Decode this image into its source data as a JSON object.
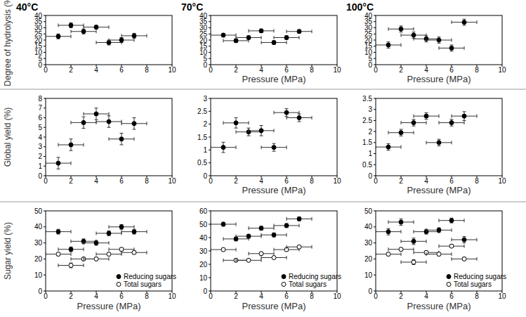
{
  "chart_data": [
    {
      "type": "scatter",
      "title": "40°C",
      "y_label": "Degree of hydrolysis (%)",
      "xlim": [
        0,
        10
      ],
      "xticks": [
        0,
        2,
        4,
        6,
        8,
        10
      ],
      "ylim": [
        0,
        40
      ],
      "yticks": [
        0,
        5,
        10,
        15,
        20,
        25,
        30,
        35,
        40
      ],
      "grid": false,
      "series": [
        {
          "color": "#000000",
          "marker": "circle",
          "x": [
            1,
            2,
            3,
            4,
            5,
            6,
            7
          ],
          "x_errors": [
            1,
            1,
            1,
            1,
            1,
            1,
            1
          ],
          "values": [
            23,
            32,
            27,
            30.5,
            18,
            20,
            23.5
          ],
          "errors": [
            2,
            2,
            2,
            1.5,
            2,
            2,
            2
          ]
        }
      ]
    },
    {
      "type": "scatter",
      "title": "70°C",
      "x_label": "Pressure (MPa)",
      "xlim": [
        0,
        10
      ],
      "xticks": [
        0,
        2,
        4,
        6,
        8,
        10
      ],
      "ylim": [
        0,
        40
      ],
      "yticks": [
        0,
        5,
        10,
        15,
        20,
        25,
        30,
        35,
        40
      ],
      "grid": false,
      "series": [
        {
          "color": "#000000",
          "marker": "circle",
          "x": [
            1,
            2,
            3,
            4,
            5,
            6,
            7
          ],
          "x_errors": [
            1,
            1,
            1,
            1,
            1,
            1,
            1
          ],
          "values": [
            24,
            19.5,
            22,
            27.5,
            18,
            22,
            27
          ],
          "errors": [
            1.5,
            1.5,
            1.5,
            1.5,
            1.5,
            1.5,
            1.5
          ]
        }
      ]
    },
    {
      "type": "scatter",
      "title": "100°C",
      "x_label": "Pressure (MPa)",
      "xlim": [
        0,
        10
      ],
      "xticks": [
        0,
        2,
        4,
        6,
        8,
        10
      ],
      "ylim": [
        0,
        40
      ],
      "yticks": [
        0,
        5,
        10,
        15,
        20,
        25,
        30,
        35,
        40
      ],
      "grid": false,
      "series": [
        {
          "color": "#000000",
          "marker": "circle",
          "x": [
            1,
            2,
            3,
            4,
            5,
            6,
            7
          ],
          "x_errors": [
            1,
            1,
            1,
            1,
            1,
            1,
            1
          ],
          "values": [
            16,
            29,
            24,
            21,
            20,
            13.5,
            34.5
          ],
          "errors": [
            2.5,
            2.5,
            2.5,
            2.5,
            2.5,
            2.5,
            2.5
          ]
        }
      ]
    },
    {
      "type": "scatter",
      "y_label": "Global yield (%)",
      "xlim": [
        0,
        10
      ],
      "xticks": [
        0,
        2,
        4,
        6,
        8,
        10
      ],
      "ylim": [
        0,
        8
      ],
      "yticks": [
        0,
        1,
        2,
        3,
        4,
        5,
        6,
        7,
        8
      ],
      "grid": false,
      "series": [
        {
          "color": "#000000",
          "marker": "circle",
          "x": [
            1,
            2,
            3,
            4,
            5,
            6,
            7
          ],
          "x_errors": [
            1,
            1,
            1,
            1,
            1,
            1,
            1
          ],
          "values": [
            1.3,
            3.2,
            5.5,
            6.4,
            5.6,
            3.8,
            5.4
          ],
          "errors": [
            0.6,
            0.6,
            0.6,
            0.6,
            0.6,
            0.6,
            0.6
          ]
        }
      ]
    },
    {
      "type": "scatter",
      "x_label": "Pressure (MPa)",
      "xlim": [
        0,
        10
      ],
      "xticks": [
        0,
        2,
        4,
        6,
        8,
        10
      ],
      "ylim": [
        0,
        3
      ],
      "yticks": [
        0,
        0.5,
        1,
        1.5,
        2,
        2.5,
        3
      ],
      "grid": false,
      "series": [
        {
          "color": "#000000",
          "marker": "circle",
          "x": [
            1,
            2,
            3,
            4,
            5,
            6,
            7
          ],
          "x_errors": [
            1,
            1,
            1,
            1,
            1,
            1,
            1
          ],
          "values": [
            1.1,
            2.05,
            1.7,
            1.75,
            1.1,
            2.45,
            2.25
          ],
          "errors": [
            0.2,
            0.2,
            0.15,
            0.2,
            0.15,
            0.15,
            0.15
          ]
        }
      ]
    },
    {
      "type": "scatter",
      "x_label": "Pressure (MPa)",
      "xlim": [
        0,
        10
      ],
      "xticks": [
        0,
        2,
        4,
        6,
        8,
        10
      ],
      "ylim": [
        0,
        3.5
      ],
      "yticks": [
        0,
        0.5,
        1,
        1.5,
        2,
        2.5,
        3,
        3.5
      ],
      "grid": false,
      "series": [
        {
          "color": "#000000",
          "marker": "circle",
          "x": [
            1,
            2,
            3,
            4,
            5,
            6,
            7
          ],
          "x_errors": [
            1,
            1,
            1,
            1,
            1,
            1,
            1
          ],
          "values": [
            1.3,
            1.95,
            2.4,
            2.7,
            1.5,
            2.4,
            2.7
          ],
          "errors": [
            0.15,
            0.15,
            0.15,
            0.15,
            0.15,
            0.15,
            0.2
          ]
        }
      ]
    },
    {
      "type": "scatter",
      "y_label": "Sugar yield (%)",
      "x_label": "Pressure (MPa)",
      "xlim": [
        0,
        10
      ],
      "xticks": [
        0,
        2,
        4,
        6,
        8,
        10
      ],
      "ylim": [
        0,
        50
      ],
      "yticks": [
        0,
        10,
        20,
        30,
        40,
        50
      ],
      "grid": false,
      "legend": "lower right",
      "series": [
        {
          "name": "Reducing sugars",
          "color": "#000000",
          "marker": "circle",
          "x": [
            1,
            2,
            3,
            4,
            5,
            6,
            7
          ],
          "x_errors": [
            1,
            1,
            1,
            1,
            1,
            1,
            1
          ],
          "values": [
            37,
            26,
            31,
            30,
            36,
            40,
            37
          ],
          "errors": [
            1.5,
            1.5,
            1.5,
            1.5,
            1.5,
            1.5,
            1.5
          ]
        },
        {
          "name": "Total sugars",
          "color": "#000000",
          "marker": "open_circle",
          "x": [
            1,
            2,
            3,
            4,
            5,
            6,
            7
          ],
          "x_errors": [
            1,
            1,
            1,
            1,
            1,
            1,
            1
          ],
          "values": [
            23,
            16,
            20,
            20,
            23,
            26,
            24
          ],
          "errors": [
            1,
            1.5,
            1,
            1,
            1,
            1,
            1
          ]
        }
      ]
    },
    {
      "type": "scatter",
      "x_label": "Pressure (MPa)",
      "xlim": [
        0,
        10
      ],
      "xticks": [
        0,
        2,
        4,
        6,
        8,
        10
      ],
      "ylim": [
        0,
        60
      ],
      "yticks": [
        0,
        10,
        20,
        30,
        40,
        50,
        60
      ],
      "grid": false,
      "legend": "lower right",
      "series": [
        {
          "name": "Reducing sugars",
          "color": "#000000",
          "marker": "circle",
          "x": [
            1,
            2,
            3,
            4,
            5,
            6,
            7
          ],
          "x_errors": [
            1,
            1,
            1,
            1,
            1,
            1,
            1
          ],
          "values": [
            50,
            39,
            41,
            47,
            42,
            49,
            54
          ],
          "errors": [
            1.5,
            1.5,
            1.5,
            1.5,
            1.5,
            1.5,
            1.5
          ]
        },
        {
          "name": "Total sugars",
          "color": "#000000",
          "marker": "open_circle",
          "x": [
            1,
            2,
            3,
            4,
            5,
            6,
            7
          ],
          "x_errors": [
            1,
            1,
            1,
            1,
            1,
            1,
            1
          ],
          "values": [
            31,
            23,
            23,
            28,
            25,
            31,
            33
          ],
          "errors": [
            1,
            1,
            1,
            1,
            1,
            1,
            1
          ]
        }
      ]
    },
    {
      "type": "scatter",
      "x_label": "Pressure (MPa)",
      "xlim": [
        0,
        10
      ],
      "xticks": [
        0,
        2,
        4,
        6,
        8,
        10
      ],
      "ylim": [
        0,
        50
      ],
      "yticks": [
        0,
        10,
        20,
        30,
        40,
        50
      ],
      "grid": false,
      "legend": "lower right",
      "series": [
        {
          "name": "Reducing sugars",
          "color": "#000000",
          "marker": "circle",
          "x": [
            1,
            2,
            3,
            4,
            5,
            6,
            7
          ],
          "x_errors": [
            1,
            1,
            1,
            1,
            1,
            1,
            1
          ],
          "values": [
            37,
            43,
            31,
            37,
            38,
            44,
            32
          ],
          "errors": [
            2,
            2,
            2,
            1.5,
            1.5,
            1.5,
            2
          ]
        },
        {
          "name": "Total sugars",
          "color": "#000000",
          "marker": "open_circle",
          "x": [
            1,
            2,
            3,
            4,
            5,
            6,
            7
          ],
          "x_errors": [
            1,
            1,
            1,
            1,
            1,
            1,
            1
          ],
          "values": [
            23,
            26,
            18,
            24,
            23,
            28,
            20
          ],
          "errors": [
            1,
            1,
            1.5,
            1,
            1,
            1,
            1
          ]
        }
      ]
    }
  ]
}
